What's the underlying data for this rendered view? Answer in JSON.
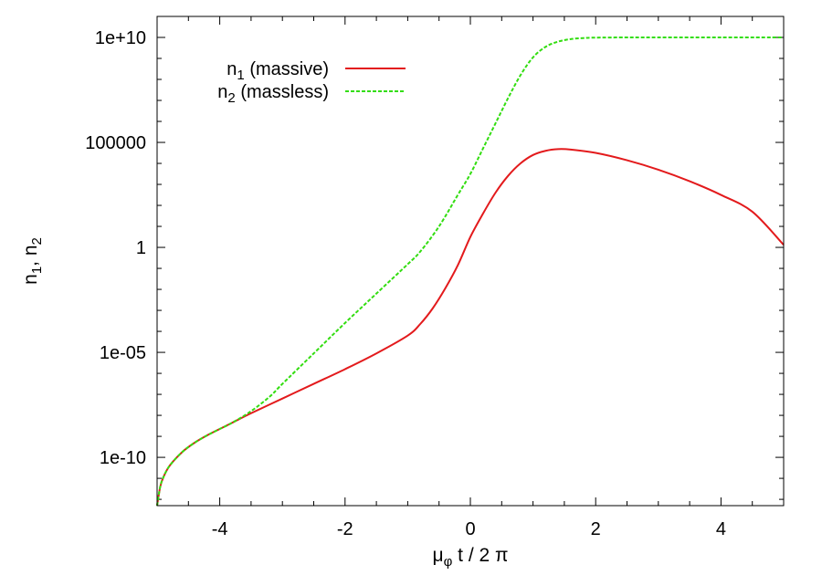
{
  "chart_data": {
    "type": "line",
    "xlabel": {
      "main": "μ",
      "sub": "φ",
      "rest": " t / 2 π"
    },
    "ylabel": {
      "a": "n",
      "a_sub": "1",
      "sep": ", n",
      "b_sub": "2"
    },
    "xlim": [
      -5,
      5
    ],
    "ylim_log10": [
      -12.3,
      11
    ],
    "y_scale": "log",
    "x_ticks": [
      {
        "value": -4,
        "label": "-4"
      },
      {
        "value": -2,
        "label": "-2"
      },
      {
        "value": 0,
        "label": "0"
      },
      {
        "value": 2,
        "label": "2"
      },
      {
        "value": 4,
        "label": "4"
      }
    ],
    "y_ticks": [
      {
        "log10": 10,
        "label": "1e+10"
      },
      {
        "log10": 5,
        "label": "100000"
      },
      {
        "log10": 0,
        "label": "1"
      },
      {
        "log10": -5,
        "label": "1e-05"
      },
      {
        "log10": -10,
        "label": "1e-10"
      }
    ],
    "legend_position": "top-left",
    "series": [
      {
        "name_main": "n",
        "name_sub": "1",
        "name_rest": " (massive)",
        "color": "#e31a1c",
        "dash": "solid",
        "points": [
          [
            -5.0,
            -12.3
          ],
          [
            -4.95,
            -11.4
          ],
          [
            -4.9,
            -10.95
          ],
          [
            -4.8,
            -10.4
          ],
          [
            -4.6,
            -9.75
          ],
          [
            -4.4,
            -9.3
          ],
          [
            -4.2,
            -8.95
          ],
          [
            -4.0,
            -8.65
          ],
          [
            -3.8,
            -8.35
          ],
          [
            -3.5,
            -7.9
          ],
          [
            -3.0,
            -7.2
          ],
          [
            -2.5,
            -6.5
          ],
          [
            -2.0,
            -5.8
          ],
          [
            -1.5,
            -5.05
          ],
          [
            -1.0,
            -4.2
          ],
          [
            -0.8,
            -3.65
          ],
          [
            -0.6,
            -2.9
          ],
          [
            -0.4,
            -1.95
          ],
          [
            -0.2,
            -0.85
          ],
          [
            0.0,
            0.5
          ],
          [
            0.2,
            1.6
          ],
          [
            0.4,
            2.6
          ],
          [
            0.6,
            3.4
          ],
          [
            0.8,
            4.0
          ],
          [
            1.0,
            4.4
          ],
          [
            1.2,
            4.6
          ],
          [
            1.4,
            4.68
          ],
          [
            1.6,
            4.66
          ],
          [
            2.0,
            4.5
          ],
          [
            2.5,
            4.15
          ],
          [
            3.0,
            3.7
          ],
          [
            3.5,
            3.15
          ],
          [
            4.0,
            2.5
          ],
          [
            4.5,
            1.7
          ],
          [
            5.0,
            0.12
          ]
        ]
      },
      {
        "name_main": "n",
        "name_sub": "2",
        "name_rest": " (massless)",
        "color": "#33dd11",
        "dash": "dashed",
        "points": [
          [
            -5.0,
            -12.3
          ],
          [
            -4.95,
            -11.4
          ],
          [
            -4.9,
            -10.95
          ],
          [
            -4.8,
            -10.4
          ],
          [
            -4.6,
            -9.75
          ],
          [
            -4.4,
            -9.3
          ],
          [
            -4.2,
            -8.95
          ],
          [
            -4.0,
            -8.65
          ],
          [
            -3.8,
            -8.35
          ],
          [
            -3.5,
            -7.8
          ],
          [
            -3.2,
            -7.1
          ],
          [
            -3.0,
            -6.5
          ],
          [
            -2.5,
            -5.05
          ],
          [
            -2.0,
            -3.6
          ],
          [
            -1.5,
            -2.2
          ],
          [
            -1.0,
            -0.8
          ],
          [
            -0.8,
            -0.2
          ],
          [
            -0.5,
            1.0
          ],
          [
            -0.2,
            2.5
          ],
          [
            0.0,
            3.5
          ],
          [
            0.2,
            4.7
          ],
          [
            0.4,
            5.9
          ],
          [
            0.6,
            7.1
          ],
          [
            0.8,
            8.2
          ],
          [
            1.0,
            9.05
          ],
          [
            1.2,
            9.55
          ],
          [
            1.4,
            9.8
          ],
          [
            1.6,
            9.92
          ],
          [
            1.8,
            9.97
          ],
          [
            2.0,
            9.99
          ],
          [
            2.5,
            10.0
          ],
          [
            3.0,
            10.0
          ],
          [
            4.0,
            10.0
          ],
          [
            5.0,
            10.0
          ]
        ]
      }
    ]
  }
}
